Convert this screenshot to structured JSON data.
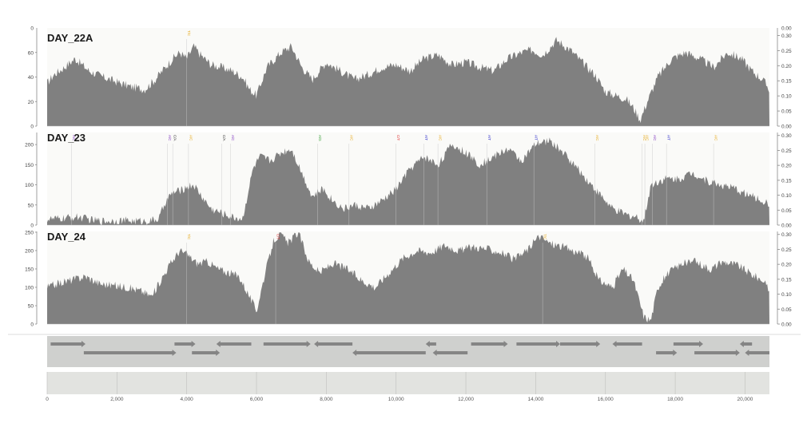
{
  "colors": {
    "coverage": "#808080",
    "track_bg": "#fafaf8",
    "axis": "#888888",
    "tick_text": "#444444",
    "gene_track_bg": "#cfd0ce",
    "gene_arrow": "#858585",
    "ruler_bg": "#e2e3e0",
    "variant_colors": [
      "#e6a817",
      "#7b2fbe",
      "#2424c8",
      "#e03030",
      "#2d9a2d",
      "#333333"
    ]
  },
  "chart_data": [
    {
      "type": "area",
      "title": "DAY_22A",
      "xlim": [
        0,
        20700
      ],
      "ylim": [
        0,
        80
      ],
      "yticks": [
        "0",
        "20",
        "40",
        "60"
      ],
      "right_axis": {
        "ylim": [
          0,
          0.325
        ],
        "ticks": [
          "0.00",
          "0.05",
          "0.10",
          "0.15",
          "0.20",
          "0.25",
          "0.30"
        ],
        "top_label": "0.00"
      },
      "left_top_label": "0",
      "x": [
        0,
        200,
        500,
        800,
        1200,
        1600,
        2000,
        2400,
        2800,
        3100,
        3300,
        3600,
        3800,
        4000,
        4200,
        4400,
        4700,
        5000,
        5300,
        5600,
        5800,
        6000,
        6300,
        6700,
        7000,
        7300,
        7600,
        8000,
        8400,
        8800,
        9200,
        9600,
        10000,
        10400,
        10800,
        11200,
        11600,
        12000,
        12400,
        12800,
        13200,
        13600,
        13900,
        14200,
        14600,
        15000,
        15400,
        15700,
        16000,
        16300,
        16600,
        16800,
        17000,
        17200,
        17500,
        17900,
        18300,
        18700,
        19100,
        19500,
        19900,
        20200,
        20500,
        20700
      ],
      "values": [
        35,
        42,
        48,
        55,
        45,
        40,
        36,
        32,
        30,
        38,
        45,
        55,
        60,
        55,
        65,
        58,
        50,
        48,
        45,
        40,
        30,
        25,
        48,
        60,
        65,
        48,
        38,
        52,
        45,
        38,
        42,
        48,
        50,
        45,
        55,
        58,
        50,
        52,
        48,
        45,
        55,
        60,
        62,
        58,
        70,
        62,
        50,
        42,
        28,
        25,
        22,
        15,
        5,
        20,
        40,
        55,
        60,
        55,
        48,
        60,
        55,
        45,
        38,
        30
      ],
      "variant_markers": [
        {
          "x": 4000,
          "label": "T/C",
          "color": "#e6a817"
        }
      ]
    },
    {
      "type": "area",
      "title": "DAY_23",
      "xlim": [
        0,
        20700
      ],
      "ylim": [
        0,
        230
      ],
      "yticks": [
        "0",
        "50",
        "100",
        "150",
        "200"
      ],
      "right_axis": {
        "ylim": [
          0,
          0.31
        ],
        "ticks": [
          "0.00",
          "0.05",
          "0.10",
          "0.15",
          "0.20",
          "0.25",
          "0.30"
        ],
        "top_label": "0.30"
      },
      "x": [
        0,
        300,
        600,
        900,
        1300,
        1700,
        2100,
        2500,
        2900,
        3200,
        3400,
        3600,
        3800,
        4000,
        4200,
        4400,
        4700,
        5000,
        5300,
        5600,
        5900,
        6100,
        6400,
        6700,
        7000,
        7300,
        7600,
        7900,
        8200,
        8500,
        8800,
        9200,
        9600,
        10000,
        10400,
        10800,
        11200,
        11600,
        12000,
        12400,
        12800,
        13200,
        13600,
        14000,
        14400,
        14800,
        15200,
        15600,
        15900,
        16200,
        16600,
        16900,
        17100,
        17300,
        17700,
        18100,
        18500,
        18900,
        19300,
        19700,
        20100,
        20500,
        20700
      ],
      "values": [
        15,
        15,
        18,
        20,
        12,
        10,
        12,
        10,
        10,
        15,
        60,
        80,
        85,
        95,
        100,
        75,
        40,
        30,
        20,
        15,
        140,
        170,
        160,
        180,
        190,
        130,
        70,
        90,
        60,
        40,
        50,
        40,
        60,
        90,
        140,
        170,
        150,
        200,
        180,
        150,
        170,
        190,
        160,
        200,
        210,
        180,
        140,
        100,
        70,
        40,
        25,
        20,
        10,
        100,
        115,
        115,
        130,
        110,
        100,
        90,
        75,
        60,
        50
      ],
      "variant_markers": [
        {
          "x": 700,
          "label": "A/C",
          "color": "#7b2fbe"
        },
        {
          "x": 3450,
          "label": "A/C",
          "color": "#7b2fbe"
        },
        {
          "x": 3600,
          "label": "C/A",
          "color": "#333333"
        },
        {
          "x": 4050,
          "label": "A/C",
          "color": "#e6a817"
        },
        {
          "x": 5000,
          "label": "C/A",
          "color": "#333333"
        },
        {
          "x": 5250,
          "label": "A/C",
          "color": "#7b2fbe"
        },
        {
          "x": 7750,
          "label": "A/G",
          "color": "#2d9a2d"
        },
        {
          "x": 8650,
          "label": "A/C",
          "color": "#e6a817"
        },
        {
          "x": 10000,
          "label": "C/T",
          "color": "#e03030"
        },
        {
          "x": 10800,
          "label": "A/T",
          "color": "#2424c8"
        },
        {
          "x": 11200,
          "label": "A/C",
          "color": "#e6a817"
        },
        {
          "x": 12600,
          "label": "A/T",
          "color": "#2424c8"
        },
        {
          "x": 13950,
          "label": "A/T",
          "color": "#2424c8"
        },
        {
          "x": 15700,
          "label": "A/C",
          "color": "#e6a817"
        },
        {
          "x": 17050,
          "label": "A/C",
          "color": "#e6a817"
        },
        {
          "x": 17130,
          "label": "A/C",
          "color": "#e6a817"
        },
        {
          "x": 17350,
          "label": "A/C",
          "color": "#7b2fbe"
        },
        {
          "x": 17750,
          "label": "A/T",
          "color": "#2424c8"
        },
        {
          "x": 19100,
          "label": "A/C",
          "color": "#e6a817"
        }
      ]
    },
    {
      "type": "area",
      "title": "DAY_24",
      "xlim": [
        0,
        20700
      ],
      "ylim": [
        0,
        252
      ],
      "yticks": [
        "0",
        "50",
        "100",
        "150",
        "200",
        "250"
      ],
      "right_axis": {
        "ylim": [
          0,
          0.31
        ],
        "ticks": [
          "0.00",
          "0.05",
          "0.10",
          "0.15",
          "0.20",
          "0.25",
          "0.30"
        ],
        "top_label": "0.30"
      },
      "x": [
        0,
        300,
        700,
        1100,
        1500,
        1900,
        2300,
        2700,
        3000,
        3200,
        3500,
        3800,
        4000,
        4300,
        4600,
        4900,
        5200,
        5500,
        5800,
        6000,
        6200,
        6500,
        6700,
        6900,
        7200,
        7500,
        7800,
        8200,
        8600,
        9000,
        9400,
        9800,
        10200,
        10600,
        11000,
        11400,
        11800,
        12200,
        12600,
        13000,
        13400,
        13800,
        14100,
        14400,
        14800,
        15200,
        15500,
        15800,
        16200,
        16500,
        16800,
        17100,
        17300,
        17500,
        17800,
        18200,
        18600,
        19000,
        19400,
        19800,
        20200,
        20500,
        20700
      ],
      "values": [
        100,
        110,
        120,
        130,
        110,
        105,
        100,
        90,
        75,
        110,
        160,
        200,
        190,
        165,
        170,
        150,
        140,
        130,
        75,
        35,
        120,
        230,
        245,
        220,
        250,
        170,
        140,
        165,
        150,
        120,
        100,
        140,
        180,
        200,
        195,
        215,
        200,
        210,
        205,
        195,
        175,
        205,
        240,
        220,
        210,
        195,
        180,
        120,
        100,
        150,
        120,
        20,
        10,
        100,
        140,
        165,
        170,
        150,
        170,
        160,
        135,
        120,
        90
      ],
      "variant_markers": [
        {
          "x": 4000,
          "label": "T/C",
          "color": "#e6a817"
        },
        {
          "x": 6550,
          "label": "C/T",
          "color": "#e03030"
        },
        {
          "x": 14200,
          "label": "T/C",
          "color": "#e6a817"
        }
      ]
    }
  ],
  "genes": [
    {
      "start": 100,
      "end": 1100,
      "strand": "+",
      "row": 0
    },
    {
      "start": 1050,
      "end": 3700,
      "strand": "+",
      "row": 1
    },
    {
      "start": 3650,
      "end": 4250,
      "strand": "+",
      "row": 0
    },
    {
      "start": 4150,
      "end": 4950,
      "strand": "+",
      "row": 1
    },
    {
      "start": 4850,
      "end": 5850,
      "strand": "-",
      "row": 0
    },
    {
      "start": 6200,
      "end": 7550,
      "strand": "+",
      "row": 0
    },
    {
      "start": 7650,
      "end": 8750,
      "strand": "-",
      "row": 0
    },
    {
      "start": 8750,
      "end": 10850,
      "strand": "-",
      "row": 1
    },
    {
      "start": 10850,
      "end": 11150,
      "strand": "-",
      "row": 0
    },
    {
      "start": 11050,
      "end": 12050,
      "strand": "-",
      "row": 1
    },
    {
      "start": 12150,
      "end": 13200,
      "strand": "+",
      "row": 0
    },
    {
      "start": 13450,
      "end": 14700,
      "strand": "+",
      "row": 0
    },
    {
      "start": 14700,
      "end": 15850,
      "strand": "+",
      "row": 0
    },
    {
      "start": 16200,
      "end": 17050,
      "strand": "-",
      "row": 0
    },
    {
      "start": 17450,
      "end": 18050,
      "strand": "+",
      "row": 1
    },
    {
      "start": 17950,
      "end": 18800,
      "strand": "+",
      "row": 0
    },
    {
      "start": 18550,
      "end": 19850,
      "strand": "+",
      "row": 1
    },
    {
      "start": 19850,
      "end": 20200,
      "strand": "-",
      "row": 0
    },
    {
      "start": 20000,
      "end": 20700,
      "strand": "-",
      "row": 1
    }
  ],
  "ruler": {
    "xlim": [
      0,
      20700
    ],
    "ticks": [
      {
        "x": 0,
        "label": "0"
      },
      {
        "x": 2000,
        "label": "2,000"
      },
      {
        "x": 4000,
        "label": "4,000"
      },
      {
        "x": 6000,
        "label": "6,000"
      },
      {
        "x": 8000,
        "label": "8,000"
      },
      {
        "x": 10000,
        "label": "10,000"
      },
      {
        "x": 12000,
        "label": "12,000"
      },
      {
        "x": 14000,
        "label": "14,000"
      },
      {
        "x": 16000,
        "label": "16,000"
      },
      {
        "x": 18000,
        "label": "18,000"
      },
      {
        "x": 20000,
        "label": "20,000"
      }
    ]
  }
}
